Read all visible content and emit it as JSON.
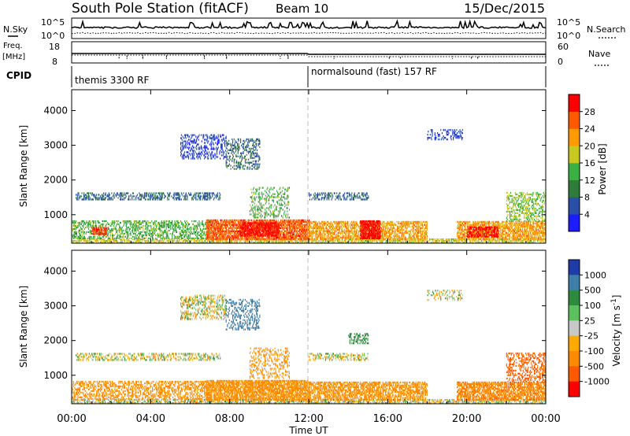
{
  "header": {
    "station": "South Pole Station (fitACF)",
    "beam": "Beam 10",
    "date": "15/Dec/2015"
  },
  "noise_panel": {
    "left_label": "N.Sky",
    "left_tick_top": "10^5",
    "left_tick_bottom": "10^0",
    "right_label": "N.Search",
    "right_tick_top": "10^5",
    "right_tick_bottom": "10^0"
  },
  "freq_panel": {
    "left_label": "Freq.",
    "left_unit": "[MHz]",
    "left_tick_top": "18",
    "left_tick_bottom": "8",
    "right_label": "Nave",
    "right_tick_top": "60",
    "right_tick_bottom": "0"
  },
  "cpid_panel": {
    "label": "CPID",
    "segment1": "themis 3300 RF",
    "segment2": "normalsound (fast) 157 RF"
  },
  "time_axis": {
    "label": "Time UT",
    "ticks": [
      "00:00",
      "04:00",
      "08:00",
      "12:00",
      "16:00",
      "20:00",
      "00:00"
    ]
  },
  "chart_data": [
    {
      "type": "heatmap",
      "name": "power",
      "xlabel": "Time UT",
      "ylabel": "Slant Range [km]",
      "xlim_hours": [
        0,
        24
      ],
      "ylim": [
        180,
        4600
      ],
      "y_ticks": [
        1000,
        2000,
        3000,
        4000
      ],
      "colorbar": {
        "label": "Power [dB]",
        "tick_labels": [
          "4",
          "8",
          "12",
          "16",
          "20",
          "24",
          "28"
        ],
        "levels": [
          0,
          4,
          8,
          12,
          16,
          20,
          24,
          28,
          32
        ],
        "colors": [
          "#1c1cff",
          "#2a4fa8",
          "#2e7b3a",
          "#3cb043",
          "#c8c820",
          "#ff9a00",
          "#ff5a00",
          "#ff0000"
        ]
      },
      "regions": [
        {
          "t": [
            0.0,
            24.0
          ],
          "r": [
            180,
            300
          ],
          "v": 18,
          "d": 0.55
        },
        {
          "t": [
            0.0,
            7.0
          ],
          "r": [
            300,
            800
          ],
          "v": 14,
          "d": 0.4
        },
        {
          "t": [
            1.0,
            1.8
          ],
          "r": [
            420,
            620
          ],
          "v": 28,
          "d": 0.6
        },
        {
          "t": [
            0.2,
            7.5
          ],
          "r": [
            1420,
            1620
          ],
          "v": 7,
          "d": 0.35
        },
        {
          "t": [
            6.8,
            12.0
          ],
          "r": [
            280,
            860
          ],
          "v": 26,
          "d": 0.7
        },
        {
          "t": [
            8.5,
            10.5
          ],
          "r": [
            380,
            780
          ],
          "v": 30,
          "d": 0.6
        },
        {
          "t": [
            5.5,
            7.8
          ],
          "r": [
            2600,
            3300
          ],
          "v": 5,
          "d": 0.3
        },
        {
          "t": [
            7.8,
            9.5
          ],
          "r": [
            2300,
            3200
          ],
          "v": 8,
          "d": 0.3
        },
        {
          "t": [
            9.0,
            11.0
          ],
          "r": [
            900,
            1800
          ],
          "v": 14,
          "d": 0.25
        },
        {
          "t": [
            12.0,
            18.0
          ],
          "r": [
            280,
            800
          ],
          "v": 22,
          "d": 0.55
        },
        {
          "t": [
            14.6,
            15.6
          ],
          "r": [
            300,
            800
          ],
          "v": 30,
          "d": 0.8
        },
        {
          "t": [
            12.0,
            15.0
          ],
          "r": [
            1420,
            1620
          ],
          "v": 7,
          "d": 0.35
        },
        {
          "t": [
            18.0,
            19.8
          ],
          "r": [
            3150,
            3450
          ],
          "v": 5,
          "d": 0.25
        },
        {
          "t": [
            19.5,
            24.0
          ],
          "r": [
            280,
            800
          ],
          "v": 22,
          "d": 0.6
        },
        {
          "t": [
            20.0,
            21.6
          ],
          "r": [
            350,
            650
          ],
          "v": 30,
          "d": 0.6
        },
        {
          "t": [
            22.0,
            24.0
          ],
          "r": [
            800,
            1650
          ],
          "v": 16,
          "d": 0.35
        }
      ]
    },
    {
      "type": "heatmap",
      "name": "velocity",
      "xlabel": "Time UT",
      "ylabel": "Slant Range [km]",
      "xlim_hours": [
        0,
        24
      ],
      "ylim": [
        180,
        4600
      ],
      "y_ticks": [
        1000,
        2000,
        3000,
        4000
      ],
      "colorbar": {
        "label": "Velocity [m s^-1]",
        "tick_labels": [
          "1000",
          "500",
          "100",
          "25",
          "-25",
          "-100",
          "-500",
          "-1000"
        ],
        "levels": [
          1000,
          500,
          100,
          25,
          -25,
          -100,
          -500,
          -1000
        ],
        "colors": [
          "#1f3ba8",
          "#3e7ea8",
          "#2e8b3e",
          "#5cc05c",
          "#c8c8c8",
          "#ffaa00",
          "#ff8a00",
          "#ff5a00",
          "#ff0000"
        ]
      },
      "regions": [
        {
          "t": [
            0.0,
            24.0
          ],
          "r": [
            180,
            300
          ],
          "v": 0,
          "d": 0.5
        },
        {
          "t": [
            0.0,
            7.0
          ],
          "r": [
            300,
            800
          ],
          "v": -150,
          "d": 0.45
        },
        {
          "t": [
            0.2,
            7.5
          ],
          "r": [
            1420,
            1620
          ],
          "v": 0,
          "d": 0.35
        },
        {
          "t": [
            6.8,
            12.0
          ],
          "r": [
            280,
            860
          ],
          "v": -200,
          "d": 0.7
        },
        {
          "t": [
            5.5,
            7.8
          ],
          "r": [
            2600,
            3300
          ],
          "v": 0,
          "d": 0.3
        },
        {
          "t": [
            7.8,
            9.5
          ],
          "r": [
            2300,
            3200
          ],
          "v": 700,
          "d": 0.3
        },
        {
          "t": [
            9.0,
            11.0
          ],
          "r": [
            900,
            1800
          ],
          "v": -150,
          "d": 0.25
        },
        {
          "t": [
            12.0,
            18.0
          ],
          "r": [
            280,
            800
          ],
          "v": -200,
          "d": 0.55
        },
        {
          "t": [
            14.0,
            15.0
          ],
          "r": [
            1900,
            2200
          ],
          "v": 300,
          "d": 0.3
        },
        {
          "t": [
            12.0,
            15.0
          ],
          "r": [
            1420,
            1620
          ],
          "v": 0,
          "d": 0.3
        },
        {
          "t": [
            18.0,
            19.8
          ],
          "r": [
            3150,
            3450
          ],
          "v": 0,
          "d": 0.25
        },
        {
          "t": [
            19.5,
            24.0
          ],
          "r": [
            280,
            800
          ],
          "v": -400,
          "d": 0.6
        },
        {
          "t": [
            22.0,
            24.0
          ],
          "r": [
            800,
            1650
          ],
          "v": -600,
          "d": 0.35
        }
      ]
    }
  ]
}
